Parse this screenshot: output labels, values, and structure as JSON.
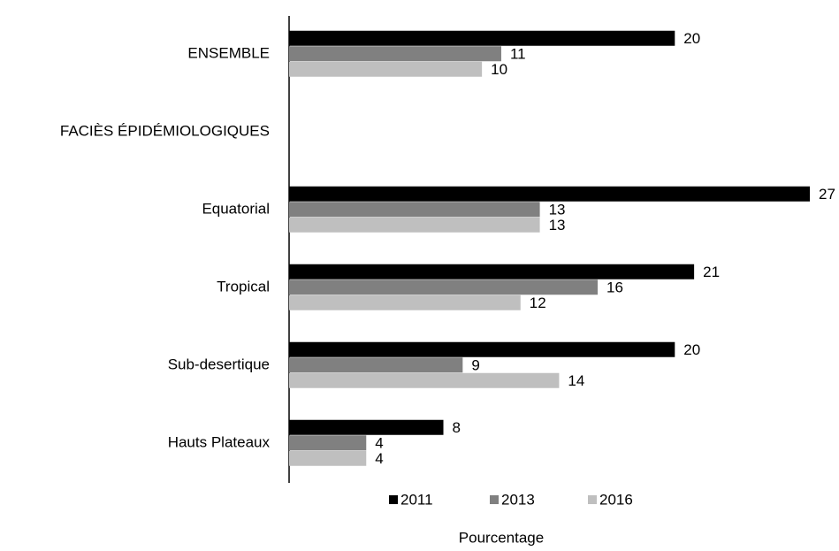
{
  "chart_data": {
    "type": "hbar",
    "categories": [
      "ENSEMBLE",
      "FACIÈS ÉPIDÉMIOLOGIQUES",
      "Equatorial",
      "Tropical",
      "Sub-desertique",
      "Hauts Plateaux"
    ],
    "series": [
      {
        "name": "2011",
        "color": "#000000",
        "values": [
          20,
          null,
          27,
          21,
          20,
          8
        ]
      },
      {
        "name": "2013",
        "color": "#808080",
        "values": [
          11,
          null,
          13,
          16,
          9,
          4
        ]
      },
      {
        "name": "2016",
        "color": "#bfbfbf",
        "values": [
          10,
          null,
          13,
          12,
          14,
          4
        ]
      }
    ],
    "xlabel": "Pourcentage",
    "legend": "bottom"
  }
}
